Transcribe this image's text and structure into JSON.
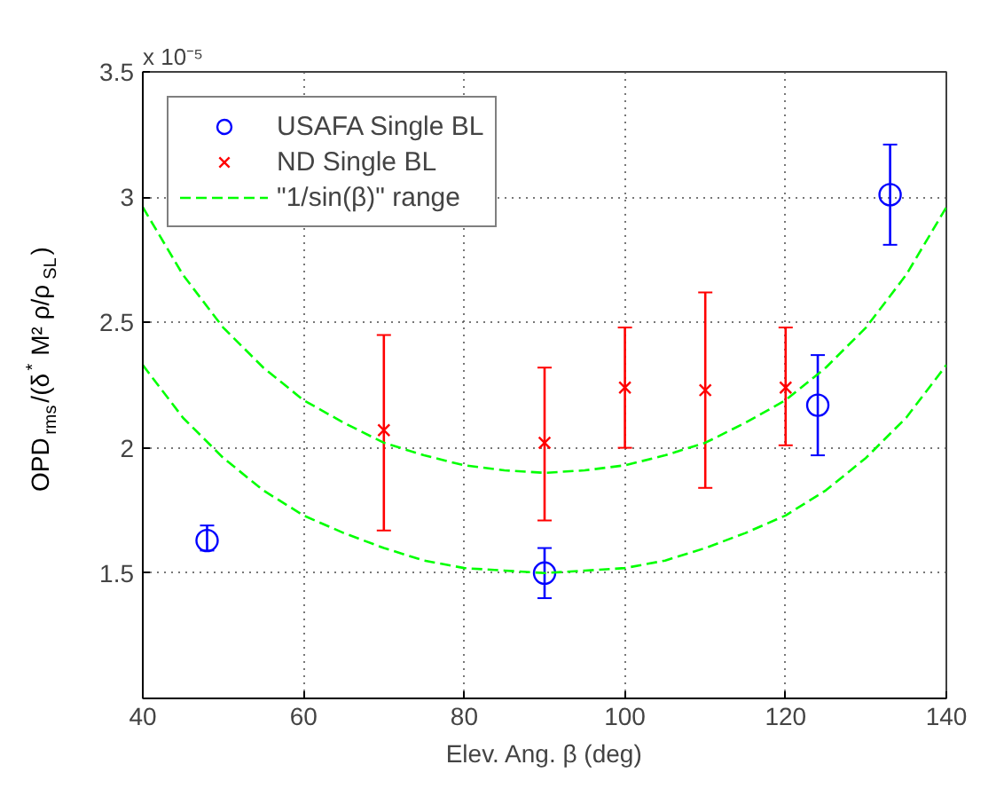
{
  "chart_data": {
    "type": "scatter",
    "xlabel": "Elev. Ang. β (deg)",
    "ylabel": "OPD$_{rms}$/(δ$^{*}$ M² ρ/ρ$_{SL}$)",
    "annotations": [
      "x 10⁻⁵"
    ],
    "xlim": [
      40,
      140
    ],
    "xticks": [
      40,
      60,
      80,
      100,
      120,
      140
    ],
    "ylim": [
      1,
      3.5
    ],
    "yticks": [
      1.5,
      2,
      2.5,
      3,
      3.5
    ],
    "grid": true,
    "legend": "top left",
    "series": [
      {
        "name": "USAFA Single BL",
        "marker": "circle",
        "color": "#0000ff",
        "x": [
          48,
          90,
          124,
          133
        ],
        "values": [
          1.63,
          1.5,
          2.17,
          3.01
        ],
        "errors": [
          [
            1.59,
            1.69
          ],
          [
            1.4,
            1.6
          ],
          [
            1.97,
            2.37
          ],
          [
            2.81,
            3.21
          ]
        ]
      },
      {
        "name": "ND Single BL",
        "marker": "cross",
        "color": "#ff0000",
        "x": [
          70,
          90,
          100,
          110,
          120
        ],
        "values": [
          2.07,
          2.02,
          2.24,
          2.23,
          2.24
        ],
        "errors": [
          [
            1.67,
            2.45
          ],
          [
            1.71,
            2.32
          ],
          [
            2.0,
            2.48
          ],
          [
            1.84,
            2.62
          ],
          [
            2.01,
            2.48
          ]
        ]
      },
      {
        "name": "\"1/sin(β)\" range",
        "type": "line",
        "line_style": "dashed",
        "color": "#00ff00",
        "x": [
          40,
          45,
          50,
          55,
          60,
          65,
          70,
          75,
          80,
          85,
          90,
          95,
          100,
          105,
          110,
          115,
          120,
          125,
          130,
          135,
          140
        ],
        "values": [
          2.96,
          2.69,
          2.48,
          2.32,
          2.19,
          2.1,
          2.02,
          1.97,
          1.93,
          1.91,
          1.9,
          1.91,
          1.93,
          1.97,
          2.02,
          2.1,
          2.19,
          2.32,
          2.48,
          2.69,
          2.96
        ]
      },
      {
        "type": "line",
        "line_style": "dashed",
        "color": "#00ff00",
        "x": [
          40,
          45,
          50,
          55,
          60,
          65,
          70,
          75,
          80,
          85,
          90,
          95,
          100,
          105,
          110,
          115,
          120,
          125,
          130,
          135,
          140
        ],
        "values": [
          2.33,
          2.12,
          1.96,
          1.83,
          1.73,
          1.66,
          1.6,
          1.55,
          1.52,
          1.51,
          1.5,
          1.51,
          1.52,
          1.55,
          1.6,
          1.66,
          1.73,
          1.83,
          1.96,
          2.12,
          2.33
        ]
      }
    ]
  }
}
